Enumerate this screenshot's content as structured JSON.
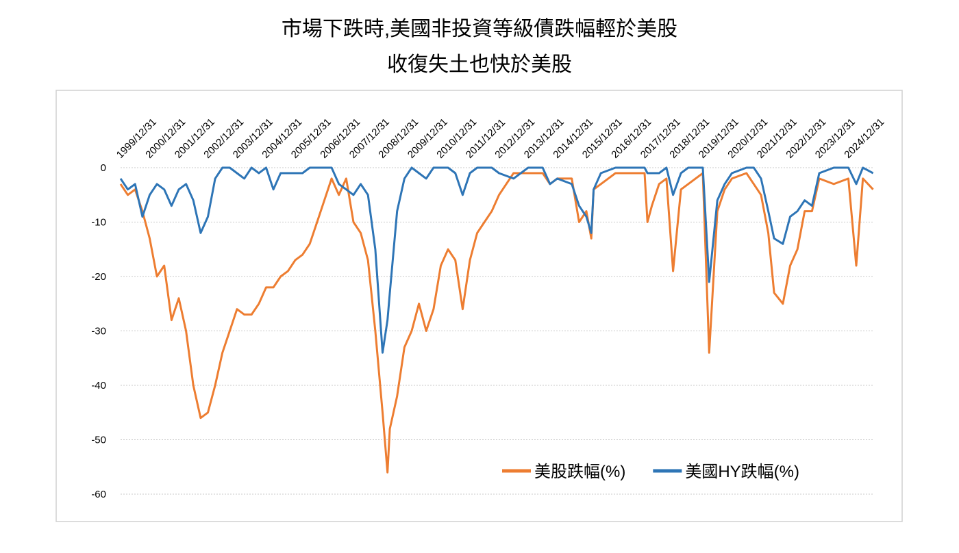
{
  "chart_data": {
    "type": "line",
    "title": [
      "市場下跌時,美國非投資等級債跌幅輕於美股",
      "收復失土也快於美股"
    ],
    "x": [
      2000,
      2000.25,
      2000.5,
      2000.75,
      2001,
      2001.25,
      2001.5,
      2001.75,
      2002,
      2002.25,
      2002.5,
      2002.75,
      2003,
      2003.25,
      2003.5,
      2003.75,
      2004,
      2004.25,
      2004.5,
      2004.75,
      2005,
      2005.25,
      2005.5,
      2005.75,
      2006,
      2006.25,
      2006.5,
      2006.75,
      2007,
      2007.25,
      2007.5,
      2007.75,
      2008,
      2008.25,
      2008.5,
      2008.75,
      2009,
      2009.17,
      2009.25,
      2009.5,
      2009.75,
      2010,
      2010.25,
      2010.5,
      2010.75,
      2011,
      2011.25,
      2011.5,
      2011.75,
      2012,
      2012.25,
      2012.5,
      2012.75,
      2013,
      2013.5,
      2014,
      2014.5,
      2014.75,
      2015,
      2015.5,
      2015.75,
      2016,
      2016.17,
      2016.25,
      2016.5,
      2017,
      2017.5,
      2018,
      2018.1,
      2018.25,
      2018.5,
      2018.75,
      2018.98,
      2019.25,
      2019.5,
      2020,
      2020.22,
      2020.5,
      2020.75,
      2021,
      2021.5,
      2021.75,
      2022,
      2022.25,
      2022.45,
      2022.75,
      2023,
      2023.25,
      2023.5,
      2023.75,
      2024,
      2024.5,
      2025,
      2025.27,
      2025.5,
      2025.85
    ],
    "series": [
      {
        "name": "美股跌幅(%)",
        "color": "#ED7D31",
        "values": [
          -3,
          -5,
          -4,
          -8,
          -13,
          -20,
          -18,
          -28,
          -24,
          -30,
          -40,
          -46,
          -45,
          -40,
          -34,
          -30,
          -26,
          -27,
          -27,
          -25,
          -22,
          -22,
          -20,
          -19,
          -17,
          -16,
          -14,
          -10,
          -6,
          -2,
          -5,
          -2,
          -10,
          -12,
          -17,
          -30,
          -45,
          -56,
          -48,
          -42,
          -33,
          -30,
          -25,
          -30,
          -26,
          -18,
          -15,
          -17,
          -26,
          -17,
          -12,
          -10,
          -8,
          -5,
          -1,
          -1,
          -1,
          -3,
          -2,
          -2,
          -10,
          -8,
          -13,
          -4,
          -3,
          -1,
          -1,
          -1,
          -10,
          -7,
          -3,
          -2,
          -19,
          -4,
          -3,
          -1,
          -34,
          -8,
          -4,
          -2,
          -1,
          -3,
          -5,
          -12,
          -23,
          -25,
          -18,
          -15,
          -8,
          -8,
          -2,
          -3,
          -2,
          -18,
          -2,
          -4
        ]
      },
      {
        "name": "美國HY跌幅(%)",
        "color": "#2E75B6",
        "values": [
          -2,
          -4,
          -3,
          -9,
          -5,
          -3,
          -4,
          -7,
          -4,
          -3,
          -6,
          -12,
          -9,
          -2,
          0,
          0,
          -1,
          -2,
          0,
          -1,
          0,
          -4,
          -1,
          -1,
          -1,
          -1,
          0,
          0,
          0,
          0,
          -3,
          -4,
          -5,
          -3,
          -5,
          -15,
          -34,
          -28,
          -23,
          -8,
          -2,
          0,
          -1,
          -2,
          0,
          0,
          0,
          -1,
          -5,
          -1,
          0,
          0,
          0,
          -1,
          -2,
          0,
          0,
          -3,
          -2,
          -3,
          -7,
          -9,
          -12,
          -4,
          -1,
          0,
          0,
          0,
          -1,
          -1,
          -1,
          0,
          -5,
          -1,
          0,
          0,
          -21,
          -6,
          -3,
          -1,
          0,
          0,
          -2,
          -8,
          -13,
          -14,
          -9,
          -8,
          -6,
          -7,
          -1,
          0,
          0,
          -3,
          0,
          -1
        ]
      }
    ],
    "xlim": [
      2000,
      2025.9
    ],
    "xticks": [
      {
        "value": 2000,
        "label": "1999/12/31"
      },
      {
        "value": 2001,
        "label": "2000/12/31"
      },
      {
        "value": 2002,
        "label": "2001/12/31"
      },
      {
        "value": 2003,
        "label": "2002/12/31"
      },
      {
        "value": 2004,
        "label": "2003/12/31"
      },
      {
        "value": 2005,
        "label": "2004/12/31"
      },
      {
        "value": 2006,
        "label": "2005/12/31"
      },
      {
        "value": 2007,
        "label": "2006/12/31"
      },
      {
        "value": 2008,
        "label": "2007/12/31"
      },
      {
        "value": 2009,
        "label": "2008/12/31"
      },
      {
        "value": 2010,
        "label": "2009/12/31"
      },
      {
        "value": 2011,
        "label": "2010/12/31"
      },
      {
        "value": 2012,
        "label": "2011/12/31"
      },
      {
        "value": 2013,
        "label": "2012/12/31"
      },
      {
        "value": 2014,
        "label": "2013/12/31"
      },
      {
        "value": 2015,
        "label": "2014/12/31"
      },
      {
        "value": 2016,
        "label": "2015/12/31"
      },
      {
        "value": 2017,
        "label": "2016/12/31"
      },
      {
        "value": 2018,
        "label": "2017/12/31"
      },
      {
        "value": 2019,
        "label": "2018/12/31"
      },
      {
        "value": 2020,
        "label": "2019/12/31"
      },
      {
        "value": 2021,
        "label": "2020/12/31"
      },
      {
        "value": 2022,
        "label": "2021/12/31"
      },
      {
        "value": 2023,
        "label": "2022/12/31"
      },
      {
        "value": 2024,
        "label": "2023/12/31"
      },
      {
        "value": 2025,
        "label": "2024/12/31"
      }
    ],
    "ylim": [
      -60,
      0
    ],
    "yticks": [
      0,
      -10,
      -20,
      -30,
      -40,
      -50,
      -60
    ],
    "grid": true,
    "legend": "lower right"
  }
}
